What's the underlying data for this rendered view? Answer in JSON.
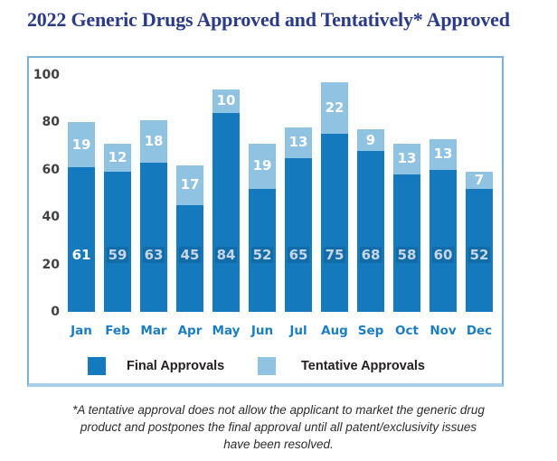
{
  "title": "2022 Generic Drugs Approved and Tentatively* Approved",
  "colors": {
    "final_bar": "#157abd",
    "tentative_bar": "#90c2e2",
    "title_text": "#2a3a87",
    "month_label": "#1b7ec1",
    "axis_label": "#414042",
    "box_border": "#7cb2d9",
    "legend_text": "#231f20"
  },
  "legend": {
    "final_label": "Final Approvals",
    "tentative_label": "Tentative Approvals"
  },
  "footnote": {
    "lines": [
      "*A tentative approval does not allow the applicant to market the generic drug",
      "product and postpones the final approval until all patent/exclusivity issues",
      "have been resolved."
    ]
  },
  "chart_data": {
    "type": "bar",
    "stacked": true,
    "title": "2022 Generic Drugs Approved and Tentatively* Approved",
    "categories": [
      "Jan",
      "Feb",
      "Mar",
      "Apr",
      "May",
      "Jun",
      "Jul",
      "Aug",
      "Sep",
      "Oct",
      "Nov",
      "Dec"
    ],
    "series": [
      {
        "name": "Final Approvals",
        "color": "#157abd",
        "values": [
          61,
          59,
          63,
          45,
          84,
          52,
          65,
          75,
          68,
          58,
          60,
          52
        ]
      },
      {
        "name": "Tentative Approvals",
        "color": "#90c2e2",
        "values": [
          19,
          12,
          18,
          17,
          10,
          19,
          13,
          22,
          9,
          13,
          13,
          7
        ]
      }
    ],
    "xlabel": "",
    "ylabel": "",
    "ylim": [
      0,
      100
    ],
    "yticks": [
      0,
      20,
      40,
      60,
      80,
      100
    ],
    "grid": false,
    "legend_position": "bottom"
  }
}
